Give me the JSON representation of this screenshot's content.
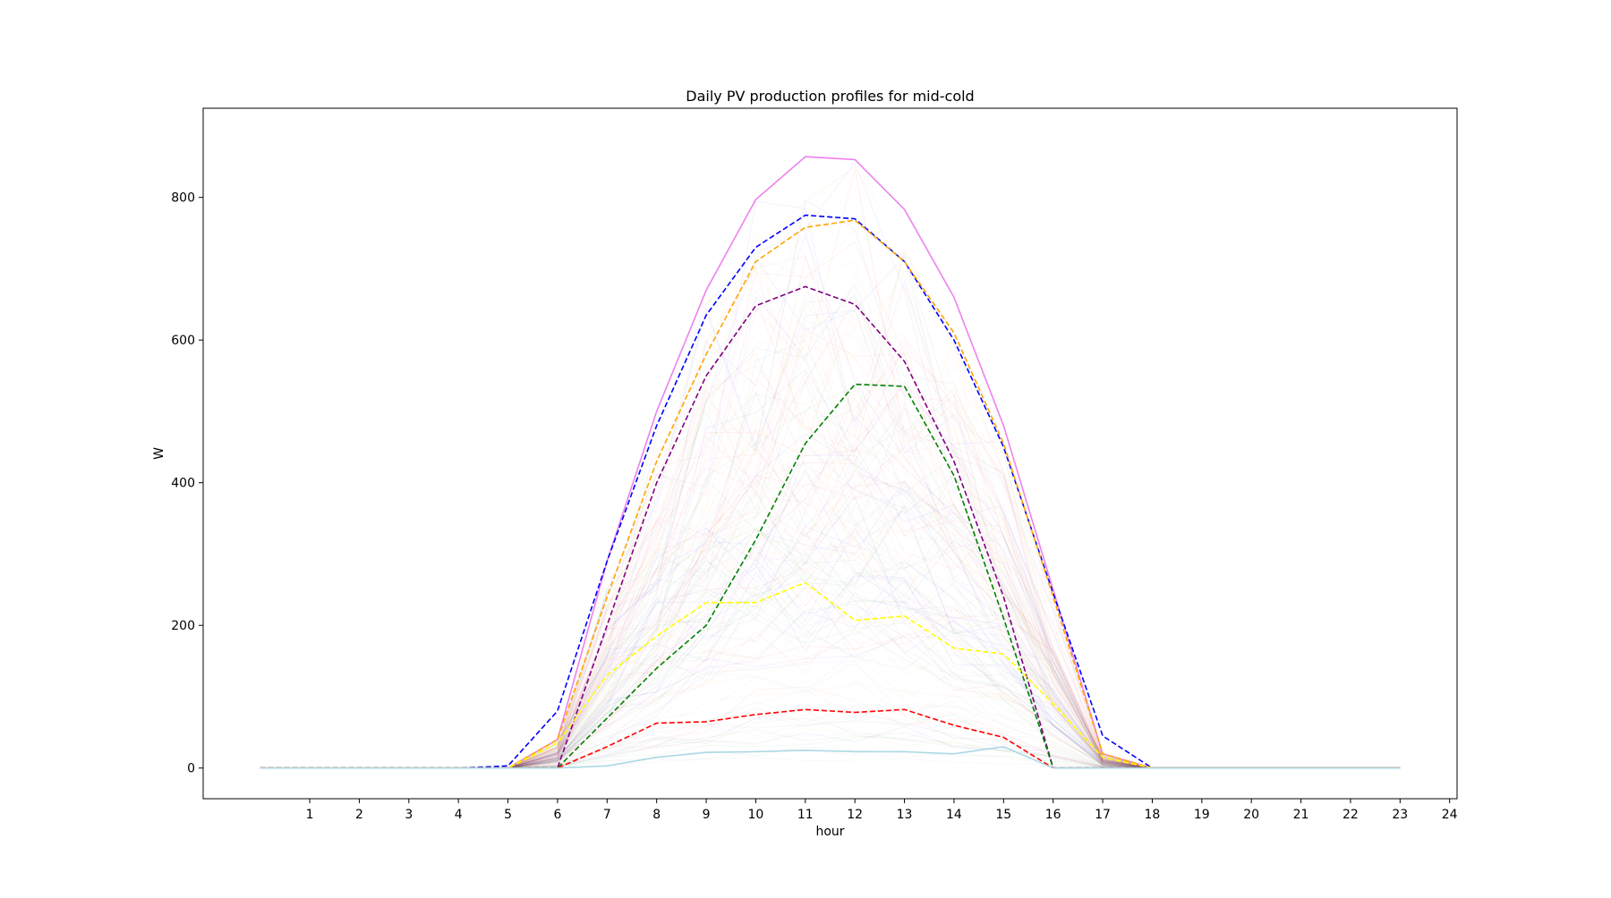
{
  "chart_data": {
    "type": "line",
    "title": "Daily PV production profiles for mid-cold",
    "xlabel": "hour",
    "ylabel": "W",
    "xlim": [
      -1.15,
      24.15
    ],
    "ylim": [
      -43,
      925
    ],
    "xticks": [
      1,
      2,
      3,
      4,
      5,
      6,
      7,
      8,
      9,
      10,
      11,
      12,
      13,
      14,
      15,
      16,
      17,
      18,
      19,
      20,
      21,
      22,
      23,
      24
    ],
    "yticks": [
      0,
      200,
      400,
      600,
      800
    ],
    "grid": false,
    "legend": "none",
    "x": [
      0,
      1,
      2,
      3,
      4,
      5,
      6,
      7,
      8,
      9,
      10,
      11,
      12,
      13,
      14,
      15,
      16,
      17,
      18,
      19,
      20,
      21,
      22,
      23
    ],
    "series": [
      {
        "color": "#ee82ee",
        "style": "solid",
        "values": [
          0,
          0,
          0,
          0,
          0,
          0,
          40,
          290,
          500,
          670,
          797,
          857,
          853,
          783,
          660,
          480,
          250,
          20,
          0,
          0,
          0,
          0,
          0,
          0
        ]
      },
      {
        "color": "#0000ff",
        "style": "dashed",
        "values": [
          0,
          0,
          0,
          0,
          0,
          3,
          80,
          290,
          480,
          635,
          730,
          775,
          770,
          710,
          600,
          450,
          245,
          45,
          0,
          0,
          0,
          0,
          0,
          0
        ]
      },
      {
        "color": "#ffa500",
        "style": "dashed",
        "values": [
          0,
          0,
          0,
          0,
          0,
          0,
          40,
          240,
          430,
          580,
          710,
          758,
          768,
          710,
          610,
          455,
          240,
          20,
          0,
          0,
          0,
          0,
          0,
          0
        ]
      },
      {
        "color": "#800080",
        "style": "dashed",
        "values": [
          0,
          0,
          0,
          0,
          0,
          0,
          0,
          200,
          400,
          550,
          648,
          675,
          650,
          570,
          430,
          240,
          0,
          0,
          0,
          0,
          0,
          0,
          0,
          0
        ]
      },
      {
        "color": "#008000",
        "style": "dashed",
        "values": [
          0,
          0,
          0,
          0,
          0,
          0,
          0,
          70,
          140,
          200,
          320,
          455,
          538,
          535,
          410,
          210,
          0,
          0,
          0,
          0,
          0,
          0,
          0,
          0
        ]
      },
      {
        "color": "#ffff00",
        "style": "dashed",
        "values": [
          0,
          0,
          0,
          0,
          0,
          0,
          35,
          130,
          185,
          232,
          232,
          260,
          207,
          213,
          168,
          160,
          90,
          15,
          0,
          0,
          0,
          0,
          0,
          0
        ]
      },
      {
        "color": "#ff0000",
        "style": "dashed",
        "values": [
          0,
          0,
          0,
          0,
          0,
          0,
          0,
          30,
          63,
          65,
          75,
          82,
          78,
          82,
          60,
          43,
          0,
          0,
          0,
          0,
          0,
          0,
          0,
          0
        ]
      },
      {
        "color": "#add8e6",
        "style": "solid",
        "values": [
          0,
          0,
          0,
          0,
          0,
          0,
          0,
          3,
          15,
          22,
          23,
          25,
          23,
          23,
          20,
          30,
          0,
          0,
          0,
          0,
          0,
          0,
          0,
          0
        ]
      }
    ],
    "background_band": {
      "colors": [
        "#ff0000",
        "#ffa500",
        "#008000",
        "#0000ff",
        "#ee82ee",
        "#808080"
      ],
      "count": 160
    }
  }
}
